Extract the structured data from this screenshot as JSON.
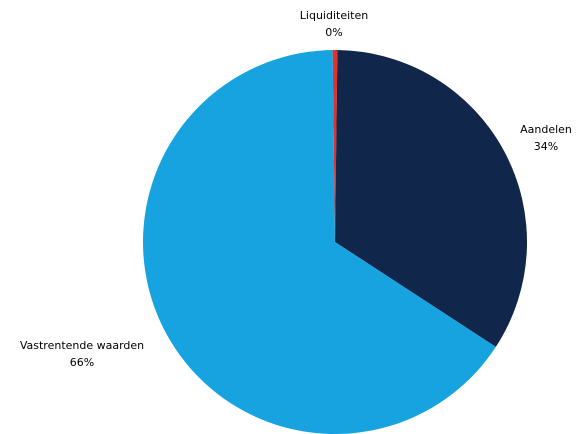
{
  "chart_data": {
    "type": "pie",
    "slices": [
      {
        "label": "Liquiditeiten",
        "percent_label": "0%",
        "value": 0.4,
        "color": "#E0312B"
      },
      {
        "label": "Aandelen",
        "percent_label": "34%",
        "value": 34,
        "color": "#10264A"
      },
      {
        "label": "Vastrentende waarden",
        "percent_label": "66%",
        "value": 65.6,
        "color": "#16A3E0"
      }
    ]
  }
}
